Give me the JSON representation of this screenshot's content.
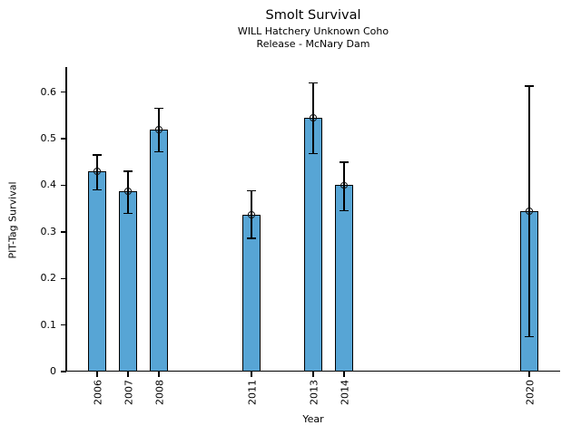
{
  "chart_data": {
    "type": "bar",
    "title": "Smolt Survival",
    "subtitle1": "WILL Hatchery Unknown Coho",
    "subtitle2": "Release - McNary Dam",
    "xlabel": "Year",
    "ylabel": "PIT-Tag Survival",
    "categories": [
      "2006",
      "2007",
      "2008",
      "2011",
      "2013",
      "2014",
      "2020"
    ],
    "x_numeric": [
      2006,
      2007,
      2008,
      2011,
      2013,
      2014,
      2020
    ],
    "values": [
      0.43,
      0.387,
      0.52,
      0.337,
      0.545,
      0.4,
      0.344
    ],
    "error_low": [
      0.39,
      0.34,
      0.472,
      0.286,
      0.468,
      0.345,
      0.075
    ],
    "error_high": [
      0.465,
      0.43,
      0.565,
      0.388,
      0.62,
      0.45,
      0.613
    ],
    "ytick_labels": [
      "0",
      "0.1",
      "0.2",
      "0.3",
      "0.4",
      "0.5",
      "0.6"
    ],
    "ytick_values": [
      0,
      0.1,
      0.2,
      0.3,
      0.4,
      0.5,
      0.6
    ],
    "ylim": [
      0,
      0.65
    ],
    "xlim": [
      2005,
      2021
    ],
    "bar_width_years": 0.6,
    "marker": "open-circle",
    "grid": false,
    "legend": "none",
    "bar_color": "#57a5d5",
    "bar_edge_color": "#000000",
    "error_color": "#000000",
    "text_color": "#000000",
    "background": "#ffffff"
  }
}
